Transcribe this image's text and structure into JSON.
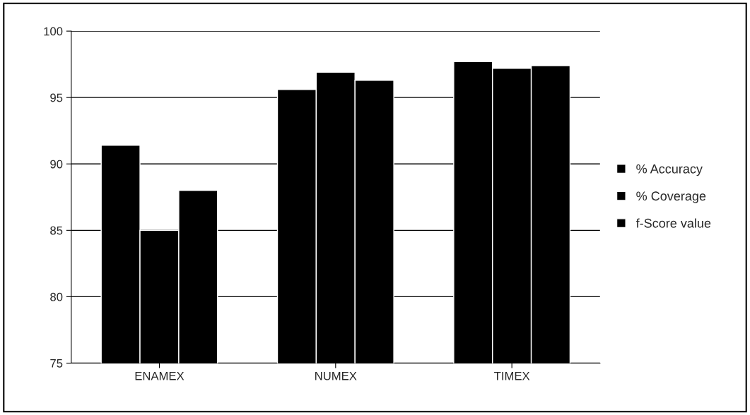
{
  "chart_data": {
    "type": "bar",
    "categories": [
      "ENAMEX",
      "NUMEX",
      "TIMEX"
    ],
    "series": [
      {
        "name": "% Accuracy",
        "color": "#000000",
        "values": [
          91.4,
          95.6,
          97.7
        ]
      },
      {
        "name": "% Coverage",
        "color": "#000000",
        "values": [
          85.0,
          96.9,
          97.2
        ]
      },
      {
        "name": "f-Score value",
        "color": "#000000",
        "values": [
          88.0,
          96.3,
          97.4
        ]
      }
    ],
    "ylim": [
      75,
      100
    ],
    "yticks": [
      75,
      80,
      85,
      90,
      95,
      100
    ],
    "grid": "y",
    "legend": "right"
  }
}
